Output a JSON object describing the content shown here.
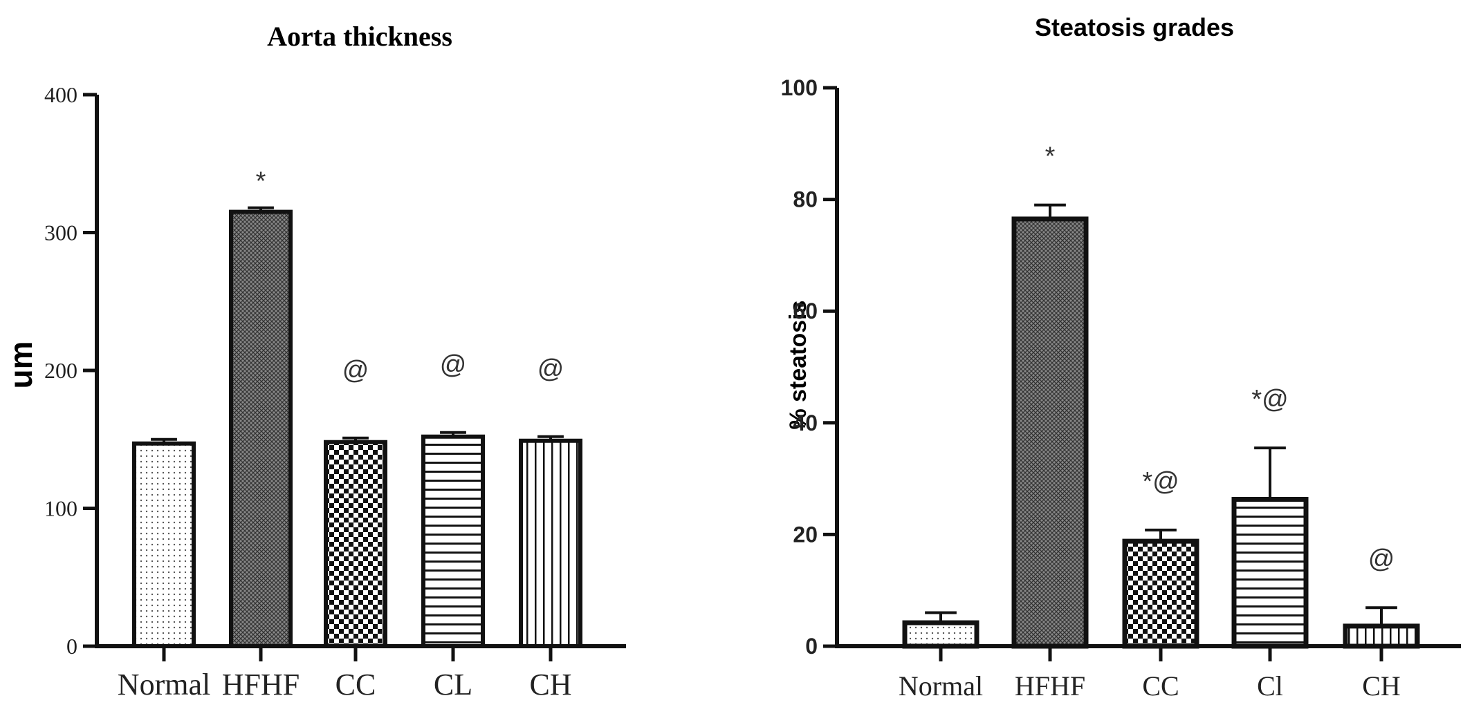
{
  "chart_data": [
    {
      "type": "bar",
      "title": "Aorta thickness",
      "xlabel": "",
      "ylabel": "um",
      "ylim": [
        0,
        400
      ],
      "yticks": [
        0,
        100,
        200,
        300,
        400
      ],
      "categories": [
        "Normal",
        "HFHF",
        "CC",
        "CL",
        "CH"
      ],
      "values": [
        147,
        315,
        148,
        152,
        149
      ],
      "errors": [
        3,
        3,
        3,
        3,
        3
      ],
      "annotations": [
        "",
        "*",
        "@",
        "@",
        "@"
      ],
      "patterns": [
        "dots",
        "fine-cross",
        "checker",
        "horizontal",
        "vertical"
      ]
    },
    {
      "type": "bar",
      "title": "Steatosis grades",
      "xlabel": "",
      "ylabel": "% steatosis",
      "ylim": [
        0,
        100
      ],
      "yticks": [
        0,
        20,
        40,
        60,
        80,
        100
      ],
      "categories": [
        "Normal",
        "HFHF",
        "CC",
        "Cl",
        "CH"
      ],
      "values": [
        4.2,
        76.5,
        18.8,
        26.3,
        3.6
      ],
      "errors": [
        1.8,
        2.5,
        2,
        9.2,
        3.3
      ],
      "annotations": [
        "",
        "*",
        "*@",
        "*@",
        "@"
      ],
      "patterns": [
        "dots",
        "fine-cross",
        "checker",
        "horizontal",
        "vertical"
      ]
    }
  ]
}
